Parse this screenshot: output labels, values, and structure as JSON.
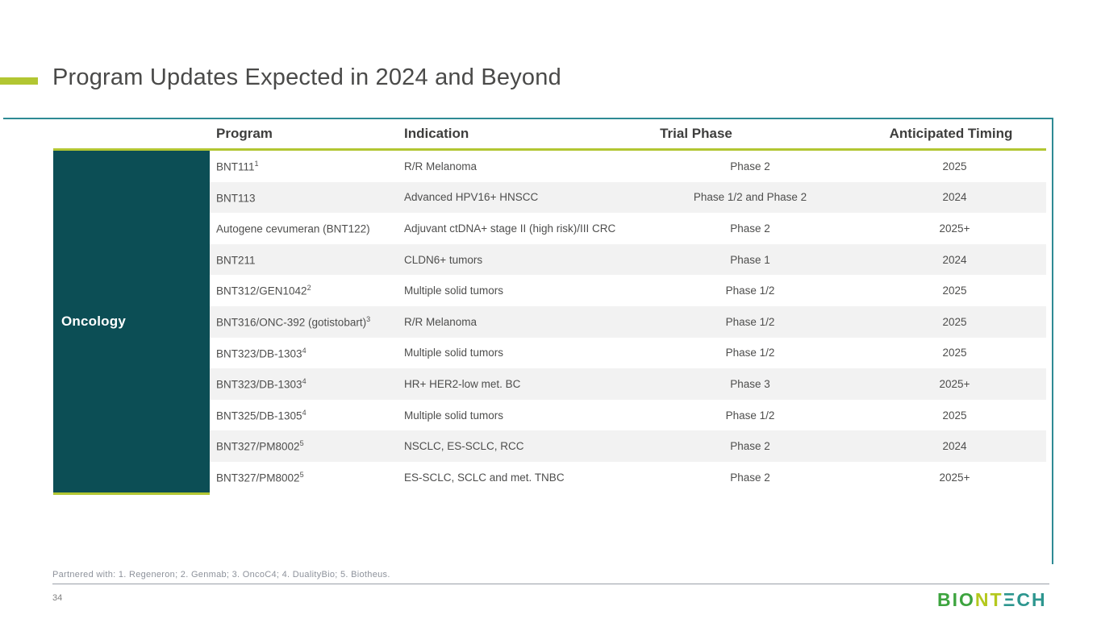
{
  "slide": {
    "title": "Program Updates Expected in 2024 and Beyond",
    "page_number": "34",
    "footnote": "Partnered with: 1. Regeneron; 2. Genmab; 3. OncoC4; 4. DualityBio; 5. Biotheus."
  },
  "colors": {
    "accent_lime": "#b2c632",
    "teal_dark": "#0c4e55",
    "teal_border": "#2e8a94",
    "row_alt": "#f2f2f2",
    "header_text": "#3e3e3d",
    "body_text": "#4e4e4d",
    "title_text": "#4a4a49",
    "logo_green": "#3da43f",
    "logo_lime": "#b4c81e",
    "logo_teal": "#2d968f"
  },
  "logo": {
    "seg_bio": "BIO",
    "seg_nt": "NT",
    "seg_ech": "ΞCH"
  },
  "table": {
    "category": "Oncology",
    "columns": {
      "program": "Program",
      "indication": "Indication",
      "phase": "Trial Phase",
      "timing": "Anticipated Timing"
    },
    "rows": [
      {
        "program": "BNT111",
        "sup": "1",
        "indication": "R/R Melanoma",
        "phase": "Phase 2",
        "timing": "2025"
      },
      {
        "program": "BNT113",
        "sup": "",
        "indication": "Advanced HPV16+ HNSCC",
        "phase": "Phase 1/2 and Phase 2",
        "timing": "2024"
      },
      {
        "program": "Autogene cevumeran (BNT122)",
        "sup": "",
        "indication": "Adjuvant ctDNA+ stage II (high risk)/III CRC",
        "phase": "Phase 2",
        "timing": "2025+"
      },
      {
        "program": "BNT211",
        "sup": "",
        "indication": "CLDN6+ tumors",
        "phase": "Phase 1",
        "timing": "2024"
      },
      {
        "program": "BNT312/GEN1042",
        "sup": "2",
        "indication": "Multiple solid tumors",
        "phase": "Phase 1/2",
        "timing": "2025"
      },
      {
        "program": "BNT316/ONC-392 (gotistobart)",
        "sup": "3",
        "indication": "R/R Melanoma",
        "phase": "Phase 1/2",
        "timing": "2025"
      },
      {
        "program": "BNT323/DB-1303",
        "sup": "4",
        "indication": "Multiple solid tumors",
        "phase": "Phase 1/2",
        "timing": "2025"
      },
      {
        "program": "BNT323/DB-1303",
        "sup": "4",
        "indication": "HR+ HER2-low met. BC",
        "phase": "Phase 3",
        "timing": "2025+"
      },
      {
        "program": "BNT325/DB-1305",
        "sup": "4",
        "indication": "Multiple solid tumors",
        "phase": "Phase 1/2",
        "timing": "2025"
      },
      {
        "program": "BNT327/PM8002",
        "sup": "5",
        "indication": "NSCLC, ES-SCLC, RCC",
        "phase": "Phase 2",
        "timing": "2024"
      },
      {
        "program": "BNT327/PM8002",
        "sup": "5",
        "indication": "ES-SCLC, SCLC and met. TNBC",
        "phase": "Phase 2",
        "timing": "2025+"
      }
    ]
  }
}
